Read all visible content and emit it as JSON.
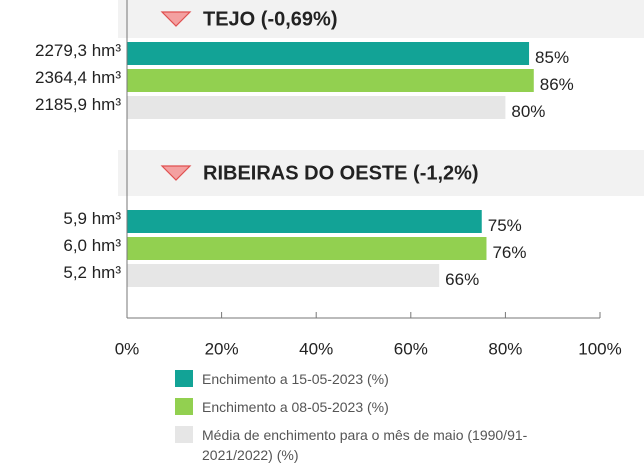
{
  "chart_data": {
    "type": "bar",
    "orientation": "horizontal",
    "categories": [
      "TEJO (-0,69%)",
      "RIBEIRAS DO OESTE (-1,2%)"
    ],
    "series": [
      {
        "name": "Enchimento a 15-05-2023 (%)",
        "color": "#12a396",
        "values": [
          85,
          75
        ],
        "value_labels": [
          "85%",
          "75%"
        ],
        "volumes": [
          2279.3,
          5.9
        ],
        "volume_labels": [
          "2279,3 hm³",
          "5,9 hm³"
        ]
      },
      {
        "name": "Enchimento a 08-05-2023 (%)",
        "color": "#92d050",
        "values": [
          86,
          76
        ],
        "value_labels": [
          "86%",
          "76%"
        ],
        "volumes": [
          2364.4,
          6.0
        ],
        "volume_labels": [
          "2364,4 hm³",
          "6,0 hm³"
        ]
      },
      {
        "name": "Média de enchimento para o mês de maio (1990/91-2021/2022) (%)",
        "color": "#e6e6e6",
        "values": [
          80,
          66
        ],
        "value_labels": [
          "80%",
          "66%"
        ],
        "volumes": [
          2185.9,
          5.2
        ],
        "volume_labels": [
          "2185,9 hm³",
          "5,2 hm³"
        ]
      }
    ],
    "xlim": [
      0,
      100
    ],
    "xticks": [
      {
        "value": 0,
        "label": "0%"
      },
      {
        "value": 20,
        "label": "20%"
      },
      {
        "value": 40,
        "label": "40%"
      },
      {
        "value": 60,
        "label": "60%"
      },
      {
        "value": 80,
        "label": "80%"
      },
      {
        "value": 100,
        "label": "100%"
      }
    ]
  }
}
